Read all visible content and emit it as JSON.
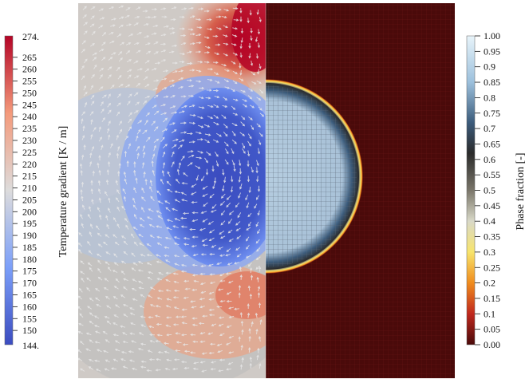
{
  "figure": {
    "left_colorbar": {
      "title": "Temperature gradient [K / m]",
      "min_label": "144.",
      "max_label": "274.",
      "ticks": [
        "265",
        "260",
        "255",
        "250",
        "245",
        "240",
        "235",
        "230",
        "225",
        "220",
        "215",
        "210",
        "205",
        "200",
        "195",
        "190",
        "185",
        "180",
        "175",
        "170",
        "165",
        "160",
        "155",
        "150"
      ],
      "min": 144,
      "max": 274,
      "colors": [
        "#3b4cc0",
        "#7b9ff9",
        "#dddcdc",
        "#f49a7b",
        "#b40426"
      ]
    },
    "right_colorbar": {
      "title": "Phase fraction [-]",
      "ticks": [
        "1.00",
        "0.95",
        "0.9",
        "0.85",
        "0.8",
        "0.75",
        "0.7",
        "0.65",
        "0.6",
        "0.55",
        "0.5",
        "0.45",
        "0.4",
        "0.35",
        "0.3",
        "0.25",
        "0.2",
        "0.15",
        "0.1",
        "0.05",
        "0.00"
      ],
      "min": 0,
      "max": 1,
      "colors": [
        "#4a0a0a",
        "#c0281e",
        "#f08c1e",
        "#f7e46c",
        "#d9d9c8",
        "#5c5a50",
        "#2b2b2b",
        "#3c5c7c",
        "#9cc0dc",
        "#e8f4fa"
      ]
    },
    "field": {
      "bubble_phase_fraction": 1.0,
      "liquid_phase_fraction": 0.0
    }
  }
}
